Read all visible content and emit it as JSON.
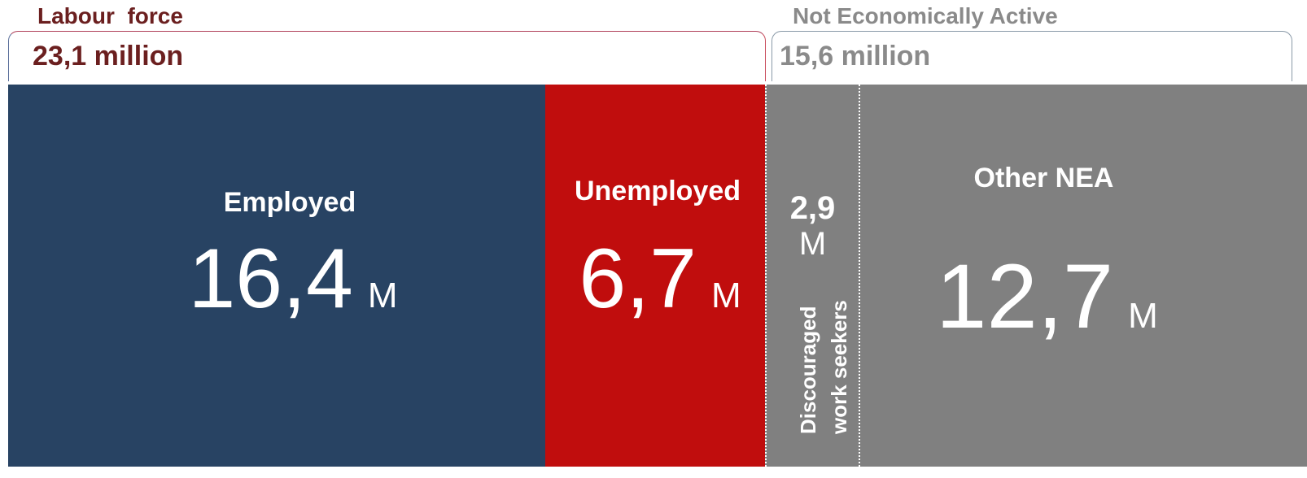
{
  "groups": [
    {
      "title": "Labour  force",
      "total": "23,1 million"
    },
    {
      "title": "Not Economically Active",
      "total": "15,6 million"
    }
  ],
  "segments": [
    {
      "label": "Employed",
      "value": "16,4",
      "unit": "M"
    },
    {
      "label": "Unemployed",
      "value": "6,7",
      "unit": "M"
    },
    {
      "label": "Discouraged work seekers",
      "value": "2,9",
      "unit": "M"
    },
    {
      "label": "Other NEA",
      "value": "12,7",
      "unit": "M"
    }
  ]
}
